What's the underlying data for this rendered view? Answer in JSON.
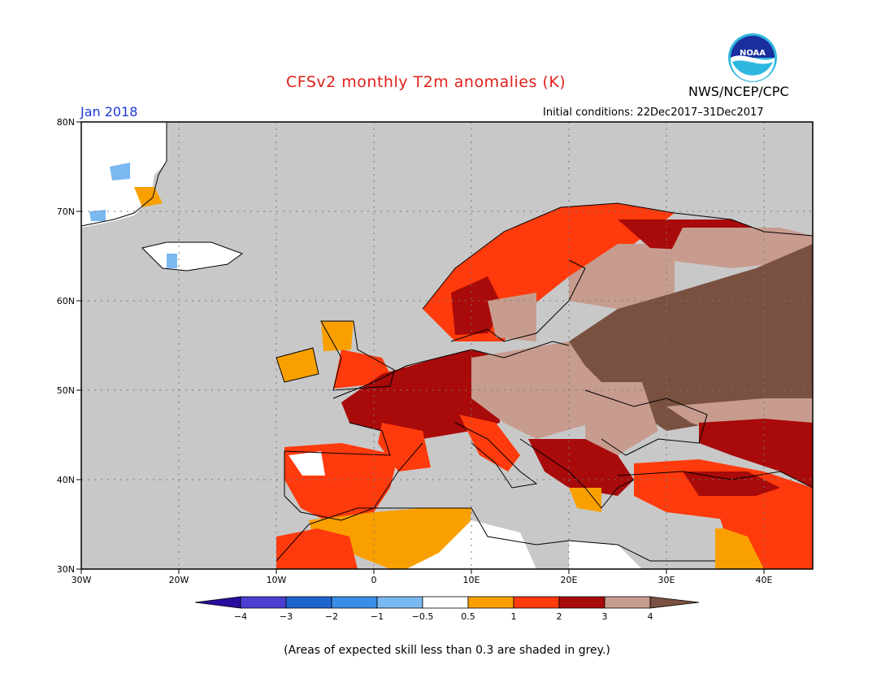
{
  "header": {
    "title": "CFSv2 monthly T2m anomalies (K)",
    "agency": "NWS/NCEP/CPC",
    "logo_text": "NOAA",
    "month": "Jan 2018",
    "initial_conditions": "Initial conditions: 22Dec2017–31Dec2017"
  },
  "map": {
    "lat_ticks": [
      "80N",
      "70N",
      "60N",
      "50N",
      "40N",
      "30N"
    ],
    "lon_ticks": [
      "30W",
      "20W",
      "10W",
      "0",
      "10E",
      "20E",
      "30E",
      "40E"
    ],
    "extent": {
      "lon_min": -30,
      "lon_max": 45,
      "lat_min": 30,
      "lat_max": 80
    },
    "background_color": "#c8c8c8"
  },
  "legend": {
    "labels": [
      "−4",
      "−3",
      "−2",
      "−1",
      "−0.5",
      "0.5",
      "1",
      "2",
      "3",
      "4"
    ],
    "colors": [
      "#2a0c9e",
      "#4b3fd1",
      "#1f64cf",
      "#3a8ee6",
      "#7ab8f0",
      "#ffffff",
      "#f9a000",
      "#ff3a0c",
      "#a90a0a",
      "#c79c8e",
      "#7a5040"
    ]
  },
  "footnote": "(Areas of expected skill less than 0.3 are shaded in grey.)"
}
